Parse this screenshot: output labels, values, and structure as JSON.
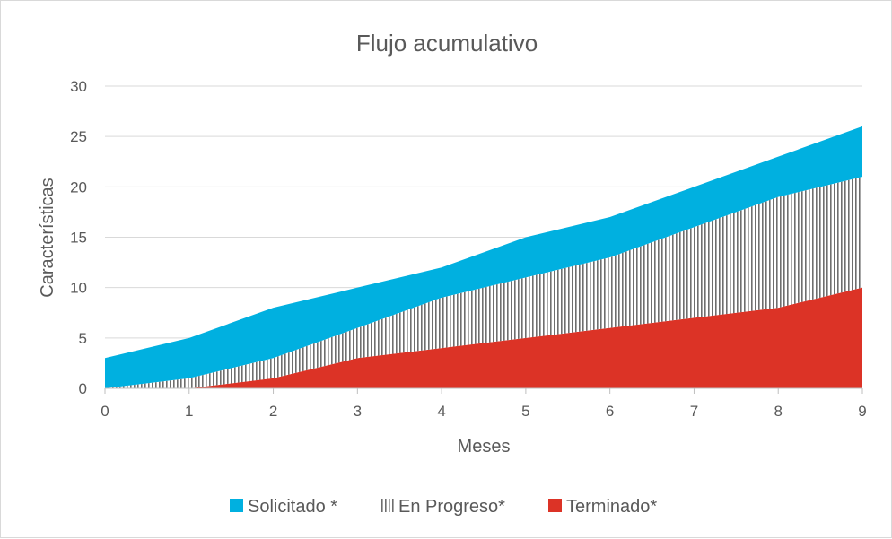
{
  "chart_data": {
    "type": "area",
    "stacked": true,
    "title": "Flujo acumulativo",
    "xlabel": "Meses",
    "ylabel": "Características",
    "x": [
      0,
      1,
      2,
      3,
      4,
      5,
      6,
      7,
      8,
      9
    ],
    "ylim": [
      0,
      30
    ],
    "yticks": [
      0,
      5,
      10,
      15,
      20,
      25,
      30
    ],
    "grid": true,
    "legend_position": "bottom",
    "series": [
      {
        "name": "Terminado*",
        "color": "#dc3326",
        "pattern": "solid",
        "values": [
          0,
          0,
          1,
          3,
          4,
          5,
          6,
          7,
          8,
          10
        ]
      },
      {
        "name": "En Progreso*",
        "color": "#7f7f7f",
        "pattern": "vertical-stripes",
        "values": [
          0,
          1,
          2,
          3,
          5,
          6,
          7,
          9,
          11,
          11
        ]
      },
      {
        "name": "Solicitado *",
        "color": "#00b0e0",
        "pattern": "solid",
        "values": [
          3,
          4,
          5,
          4,
          3,
          4,
          4,
          4,
          4,
          5
        ]
      }
    ],
    "legend_order": [
      2,
      1,
      0
    ]
  }
}
